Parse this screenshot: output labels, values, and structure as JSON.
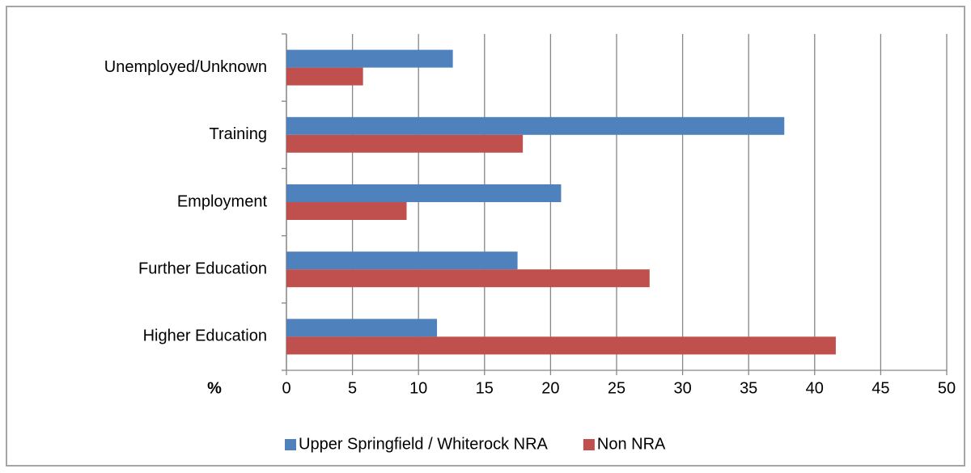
{
  "chart_data": {
    "type": "hbar",
    "categories": [
      "Unemployed/Unknown",
      "Training",
      "Employment",
      "Further Education",
      "Higher Education"
    ],
    "series": [
      {
        "name": "Upper Springfield / Whiterock NRA",
        "color": "#4f81bd",
        "values": [
          12.6,
          37.7,
          20.8,
          17.5,
          11.4
        ]
      },
      {
        "name": "Non NRA",
        "color": "#c0504d",
        "values": [
          5.8,
          17.9,
          9.1,
          27.5,
          41.6
        ]
      }
    ],
    "axis_label": "%",
    "xlim": [
      0,
      50
    ],
    "xticks": [
      0,
      5,
      10,
      15,
      20,
      25,
      30,
      35,
      40,
      45,
      50
    ],
    "grid": true
  }
}
